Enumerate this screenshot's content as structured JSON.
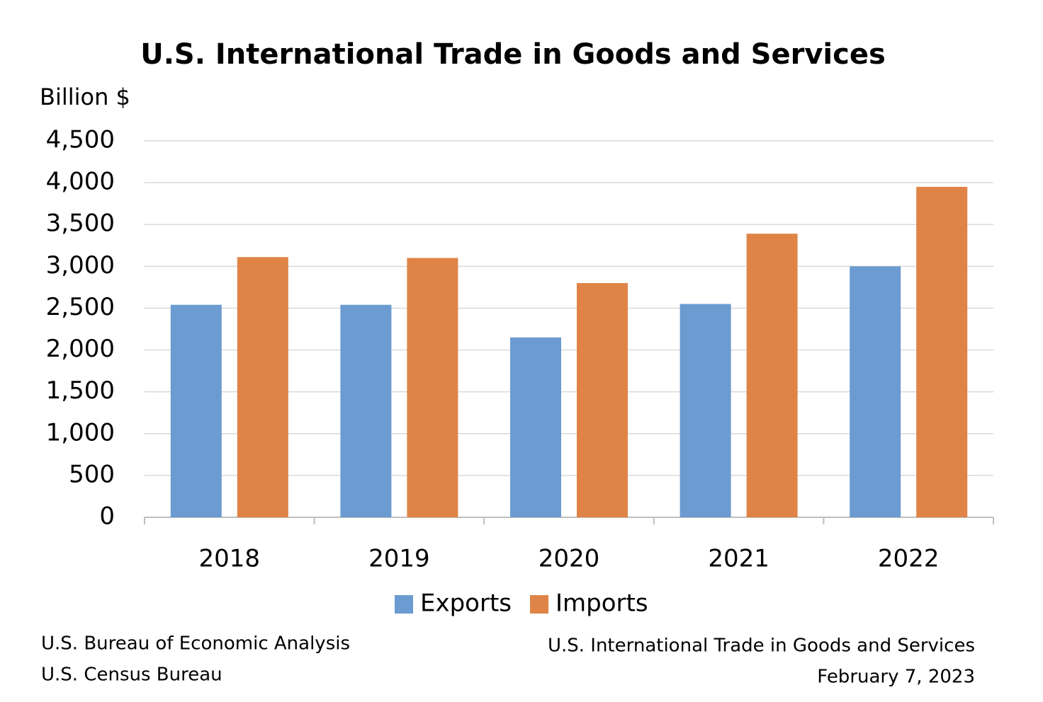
{
  "chart_data": {
    "type": "bar",
    "title": "U.S. International Trade in Goods and Services",
    "y_axis_label": "Billion $",
    "categories": [
      "2018",
      "2019",
      "2020",
      "2021",
      "2022"
    ],
    "series": [
      {
        "name": "Exports",
        "color": "#6b9bd0",
        "values": [
          2540,
          2540,
          2150,
          2550,
          3000
        ]
      },
      {
        "name": "Imports",
        "color": "#df8446",
        "values": [
          3110,
          3100,
          2800,
          3390,
          3950
        ]
      }
    ],
    "ylim": [
      0,
      4500
    ],
    "yticks": [
      0,
      500,
      {
        "value": 1000,
        "label": "1,000"
      },
      {
        "value": 1500,
        "label": "1,500"
      },
      {
        "value": 2000,
        "label": "2,000"
      },
      {
        "value": 2500,
        "label": "2,500"
      },
      {
        "value": 3000,
        "label": "3,000"
      },
      {
        "value": 3500,
        "label": "3,500"
      },
      {
        "value": 4000,
        "label": "4,000"
      },
      {
        "value": 4500,
        "label": "4,500"
      }
    ],
    "grid": true,
    "legend": "bottom",
    "source_lines": [
      "U.S. Bureau of Economic Analysis",
      "U.S. Census Bureau"
    ],
    "footer_title": "U.S. International Trade in Goods and Services",
    "date": "February 7, 2023"
  }
}
